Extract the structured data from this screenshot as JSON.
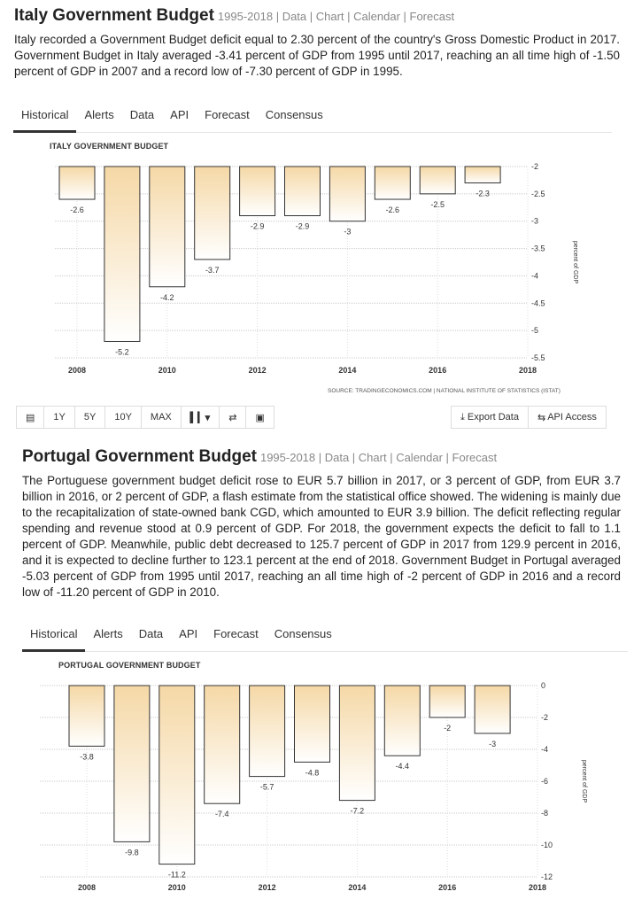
{
  "italy": {
    "title": "Italy Government Budget",
    "links": "1995-2018 | Data | Chart | Calendar | Forecast",
    "description": "Italy recorded a Government Budget deficit equal to 2.30 percent of the country's Gross Domestic Product in 2017. Government Budget in Italy averaged -3.41 percent of GDP from 1995 until 2017, reaching an all time high of -1.50 percent of GDP in 2007 and a record low of -7.30 percent of GDP in 1995.",
    "tabs": [
      "Historical",
      "Alerts",
      "Data",
      "API",
      "Forecast",
      "Consensus"
    ],
    "source": "SOURCE: TRADINGECONOMICS.COM  |  NATIONAL INSTITUTE OF STATISTICS (ISTAT)",
    "toolbar": {
      "range_buttons": [
        "1Y",
        "5Y",
        "10Y",
        "MAX"
      ],
      "export_label": "Export Data",
      "api_label": "API Access"
    }
  },
  "portugal": {
    "title": "Portugal Government Budget",
    "links": "1995-2018 | Data | Chart | Calendar | Forecast",
    "description": "The Portuguese government budget deficit rose to EUR 5.7 billion in 2017, or 3 percent of GDP, from EUR 3.7 billion in 2016, or 2 percent of GDP, a flash estimate from the statistical office showed. The widening is mainly due to the recapitalization of state-owned bank CGD, which amounted to EUR 3.9 billion. The deficit reflecting regular spending and revenue stood at 0.9 percent of GDP. For 2018, the government expects the deficit to fall to 1.1 percent of GDP. Meanwhile, public debt decreased to 125.7 percent of GDP in 2017 from 129.9 percent in 2016, and it is expected to decline further to 123.1 percent at the end of 2018. Government Budget in Portugal averaged -5.03 percent of GDP from 1995 until 2017, reaching an all time high of -2 percent of GDP in 2016 and a record low of -11.20 percent of GDP in 2010.",
    "tabs": [
      "Historical",
      "Alerts",
      "Data",
      "API",
      "Forecast",
      "Consensus"
    ]
  },
  "chart_data": [
    {
      "type": "bar",
      "title": "ITALY GOVERNMENT BUDGET",
      "ylabel": "percent of GDP",
      "x": [
        2008,
        2009,
        2010,
        2011,
        2012,
        2013,
        2014,
        2015,
        2016,
        2017
      ],
      "values": [
        -2.6,
        -5.2,
        -4.2,
        -3.7,
        -2.9,
        -2.9,
        -3,
        -2.6,
        -2.5,
        -2.3
      ],
      "labels": [
        "-2.6",
        "-5.2",
        "-4.2",
        "-3.7",
        "-2.9",
        "-2.9",
        "-3",
        "-2.6",
        "-2.5",
        "-2.3"
      ],
      "ylim": [
        -5.5,
        -2
      ],
      "baseline": -2,
      "yticks": [
        "-2",
        "-2.5",
        "-3",
        "-3.5",
        "-4",
        "-4.5",
        "-5",
        "-5.5"
      ],
      "xticks": [
        "2008",
        "2010",
        "2012",
        "2014",
        "2016",
        "2018"
      ],
      "xlim": [
        2008,
        2018
      ],
      "grid": true
    },
    {
      "type": "bar",
      "title": "PORTUGAL GOVERNMENT BUDGET",
      "ylabel": "percent of GDP",
      "x": [
        2008,
        2009,
        2010,
        2011,
        2012,
        2013,
        2014,
        2015,
        2016,
        2017
      ],
      "values": [
        -3.8,
        -9.8,
        -11.2,
        -7.4,
        -5.7,
        -4.8,
        -7.2,
        -4.4,
        -2,
        -3
      ],
      "labels": [
        "-3.8",
        "-9.8",
        "-11.2",
        "-7.4",
        "-5.7",
        "-4.8",
        "-7.2",
        "-4.4",
        "-2",
        "-3"
      ],
      "ylim": [
        -12,
        0
      ],
      "baseline": 0,
      "yticks": [
        "0",
        "-2",
        "-4",
        "-6",
        "-8",
        "-10",
        "-12"
      ],
      "xticks": [
        "2008",
        "2010",
        "2012",
        "2014",
        "2016",
        "2018"
      ],
      "xlim": [
        2008,
        2018
      ],
      "grid": true
    }
  ]
}
